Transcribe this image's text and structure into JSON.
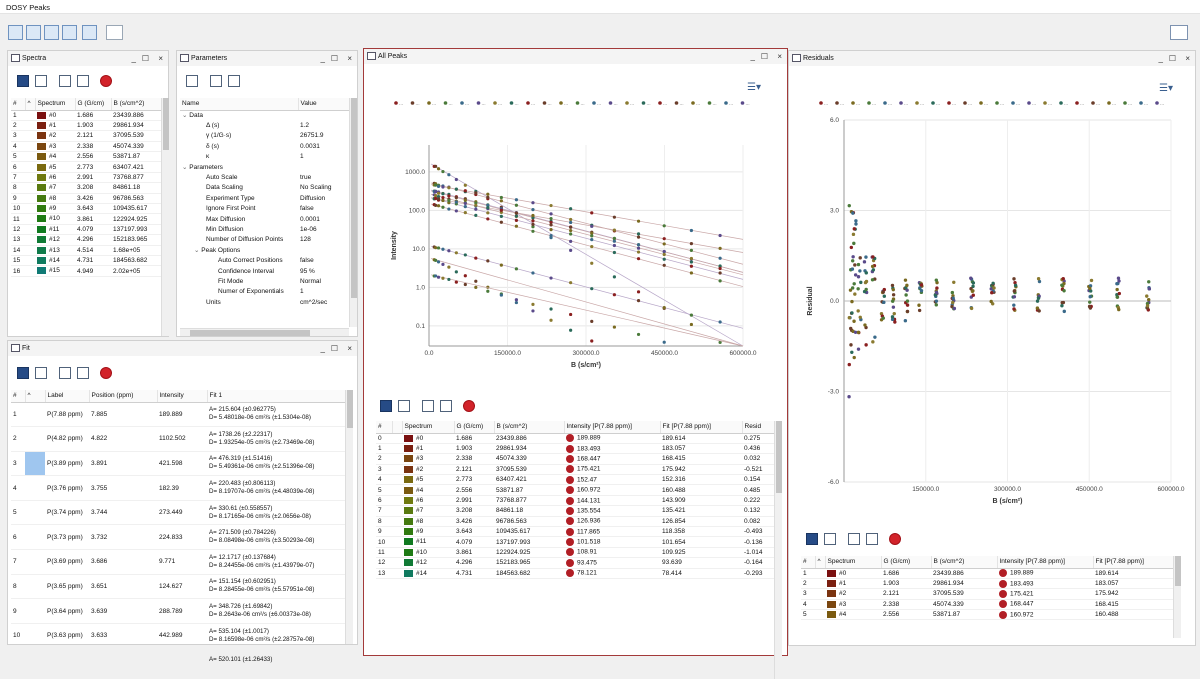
{
  "app": {
    "title": "DOSY Peaks"
  },
  "panels": {
    "spectra": {
      "title": "Spectra",
      "columns": [
        "#",
        "^",
        "Spectrum",
        "G (G/cm)",
        "B (s/cm^2)"
      ],
      "rows": [
        {
          "n": "1",
          "spectrum": "#0",
          "g": "1.686",
          "b": "23439.886",
          "color": "#7a1010"
        },
        {
          "n": "2",
          "spectrum": "#1",
          "g": "1.903",
          "b": "29861.934",
          "color": "#7a1f10"
        },
        {
          "n": "3",
          "spectrum": "#2",
          "g": "2.121",
          "b": "37095.539",
          "color": "#7a3310"
        },
        {
          "n": "4",
          "spectrum": "#3",
          "g": "2.338",
          "b": "45074.339",
          "color": "#7a4610"
        },
        {
          "n": "5",
          "spectrum": "#4",
          "g": "2.556",
          "b": "53871.87",
          "color": "#7a5a10"
        },
        {
          "n": "6",
          "spectrum": "#5",
          "g": "2.773",
          "b": "63407.421",
          "color": "#7a6a10"
        },
        {
          "n": "7",
          "spectrum": "#6",
          "g": "2.991",
          "b": "73768.877",
          "color": "#707a10"
        },
        {
          "n": "8",
          "spectrum": "#7",
          "g": "3.208",
          "b": "84861.18",
          "color": "#5a7a10"
        },
        {
          "n": "9",
          "spectrum": "#8",
          "g": "3.426",
          "b": "96786.563",
          "color": "#457a10"
        },
        {
          "n": "10",
          "spectrum": "#9",
          "g": "3.643",
          "b": "109435.617",
          "color": "#307a10"
        },
        {
          "n": "11",
          "spectrum": "#10",
          "g": "3.861",
          "b": "122924.925",
          "color": "#1e7a14"
        },
        {
          "n": "12",
          "spectrum": "#11",
          "g": "4.079",
          "b": "137197.993",
          "color": "#107a20"
        },
        {
          "n": "13",
          "spectrum": "#12",
          "g": "4.296",
          "b": "152183.965",
          "color": "#107a35"
        },
        {
          "n": "14",
          "spectrum": "#13",
          "g": "4.514",
          "b": "1.68e+05",
          "color": "#107a4a"
        },
        {
          "n": "15",
          "spectrum": "#14",
          "g": "4.731",
          "b": "184563.682",
          "color": "#107a5f"
        },
        {
          "n": "16",
          "spectrum": "#15",
          "g": "4.949",
          "b": "2.02e+05",
          "color": "#107a75"
        }
      ]
    },
    "parameters": {
      "title": "Parameters",
      "columns": [
        "Name",
        "Value"
      ],
      "rows": [
        {
          "name": "Data",
          "value": "",
          "lvl": 0,
          "exp": "v"
        },
        {
          "name": "Δ (s)",
          "value": "1.2",
          "lvl": 2,
          "exp": ""
        },
        {
          "name": "γ (1/G·s)",
          "value": "26751.9",
          "lvl": 2,
          "exp": ""
        },
        {
          "name": "δ (s)",
          "value": "0.0031",
          "lvl": 2,
          "exp": ""
        },
        {
          "name": "κ",
          "value": "1",
          "lvl": 2,
          "exp": ""
        },
        {
          "name": "Parameters",
          "value": "",
          "lvl": 0,
          "exp": "v"
        },
        {
          "name": "Auto Scale",
          "value": "true",
          "lvl": 2,
          "exp": ""
        },
        {
          "name": "Data Scaling",
          "value": "No Scaling",
          "lvl": 2,
          "exp": ""
        },
        {
          "name": "Experiment Type",
          "value": "Diffusion",
          "lvl": 2,
          "exp": ""
        },
        {
          "name": "Ignore First Point",
          "value": "false",
          "lvl": 2,
          "exp": ""
        },
        {
          "name": "Max Diffusion",
          "value": "0.0001",
          "lvl": 2,
          "exp": ""
        },
        {
          "name": "Min Diffusion",
          "value": "1e-06",
          "lvl": 2,
          "exp": ""
        },
        {
          "name": "Number of Diffusion Points",
          "value": "128",
          "lvl": 2,
          "exp": ""
        },
        {
          "name": "Peak Options",
          "value": "",
          "lvl": 1,
          "exp": "v"
        },
        {
          "name": "Auto Correct Positions",
          "value": "false",
          "lvl": 3,
          "exp": ""
        },
        {
          "name": "Confidence Interval",
          "value": "95 %",
          "lvl": 3,
          "exp": ""
        },
        {
          "name": "Fit Mode",
          "value": "Normal",
          "lvl": 3,
          "exp": ""
        },
        {
          "name": "Numer of Exponentials",
          "value": "1",
          "lvl": 3,
          "exp": ""
        },
        {
          "name": "Units",
          "value": "cm^2/sec",
          "lvl": 2,
          "exp": ""
        }
      ]
    },
    "fit": {
      "title": "Fit",
      "columns": [
        "#",
        "^",
        "Label",
        "Position (ppm)",
        "Intensity",
        "Fit 1"
      ],
      "rows": [
        {
          "n": "1",
          "label": "P(7.88 ppm)",
          "pos": "7.885",
          "int": "189.889",
          "a": "A= 215.604 (±0.962775)",
          "d": "D= 5.48018e-06 cm²/s (±1.5304e-08)"
        },
        {
          "n": "2",
          "label": "P(4.82 ppm)",
          "pos": "4.822",
          "int": "1102.502",
          "a": "A= 1738.26 (±2.22317)",
          "d": "D= 1.93254e-05 cm²/s (±2.73469e-08)"
        },
        {
          "n": "3",
          "label": "P(3.89 ppm)",
          "pos": "3.891",
          "int": "421.598",
          "a": "A= 476.319 (±1.51416)",
          "d": "D= 5.49361e-06 cm²/s (±2.51396e-08)"
        },
        {
          "n": "4",
          "label": "P(3.76 ppm)",
          "pos": "3.755",
          "int": "182.39",
          "a": "A= 220.483 (±0.806113)",
          "d": "D= 8.19707e-06 cm²/s (±4.48039e-08)"
        },
        {
          "n": "5",
          "label": "P(3.74 ppm)",
          "pos": "3.744",
          "int": "273.449",
          "a": "A= 330.61 (±0.558557)",
          "d": "D= 8.17165e-06 cm²/s (±2.0656e-08)"
        },
        {
          "n": "6",
          "label": "P(3.73 ppm)",
          "pos": "3.732",
          "int": "224.833",
          "a": "A= 271.509 (±0.784226)",
          "d": "D= 8.08498e-06 cm²/s (±3.50293e-08)"
        },
        {
          "n": "7",
          "label": "P(3.69 ppm)",
          "pos": "3.686",
          "int": "9.771",
          "a": "A= 12.1717 (±0.137684)",
          "d": "D= 8.24455e-06 cm²/s (±1.43979e-07)"
        },
        {
          "n": "8",
          "label": "P(3.65 ppm)",
          "pos": "3.651",
          "int": "124.627",
          "a": "A= 151.154 (±0.602951)",
          "d": "D= 8.28455e-06 cm²/s (±5.57951e-08)"
        },
        {
          "n": "9",
          "label": "P(3.64 ppm)",
          "pos": "3.639",
          "int": "288.789",
          "a": "A= 348.726 (±1.69842)",
          "d": "D= 8.2643e-06 cm²/s (±6.00373e-08)"
        },
        {
          "n": "10",
          "label": "P(3.63 ppm)",
          "pos": "3.633",
          "int": "442.989",
          "a": "A= 535.104 (±1.0017)",
          "d": "D= 8.16598e-06 cm²/s (±2.28757e-08)"
        },
        {
          "n": "",
          "label": "",
          "pos": "",
          "int": "",
          "a": "A= 520.101 (±1.26433)",
          "d": ""
        }
      ]
    },
    "allpeaks": {
      "title": "All Peaks",
      "columns": [
        "#",
        "",
        "Spectrum",
        "G (G/cm)",
        "B (s/cm^2)",
        "Intensity [P(7.88 ppm)]",
        "Fit [P(7.88 ppm)]",
        "Resid"
      ],
      "rows": [
        {
          "n": "0",
          "spectrum": "#0",
          "g": "1.686",
          "b": "23439.886",
          "i": "189.889",
          "f": "189.614",
          "r": "0.275",
          "color": "#7a1010"
        },
        {
          "n": "1",
          "spectrum": "#1",
          "g": "1.903",
          "b": "29861.934",
          "i": "183.493",
          "f": "183.057",
          "r": "0.436",
          "color": "#7a1f10"
        },
        {
          "n": "2",
          "spectrum": "#3",
          "g": "2.338",
          "b": "45074.339",
          "i": "168.447",
          "f": "168.415",
          "r": "0.032",
          "color": "#7a4610"
        },
        {
          "n": "3",
          "spectrum": "#2",
          "g": "2.121",
          "b": "37095.539",
          "i": "175.421",
          "f": "175.942",
          "r": "-0.521",
          "color": "#7a3310"
        },
        {
          "n": "4",
          "spectrum": "#5",
          "g": "2.773",
          "b": "63407.421",
          "i": "152.47",
          "f": "152.316",
          "r": "0.154",
          "color": "#7a6a10"
        },
        {
          "n": "5",
          "spectrum": "#4",
          "g": "2.556",
          "b": "53871.87",
          "i": "160.972",
          "f": "160.488",
          "r": "0.485",
          "color": "#7a5a10"
        },
        {
          "n": "6",
          "spectrum": "#6",
          "g": "2.991",
          "b": "73768.877",
          "i": "144.131",
          "f": "143.909",
          "r": "0.222",
          "color": "#707a10"
        },
        {
          "n": "7",
          "spectrum": "#7",
          "g": "3.208",
          "b": "84861.18",
          "i": "135.554",
          "f": "135.421",
          "r": "0.132",
          "color": "#5a7a10"
        },
        {
          "n": "8",
          "spectrum": "#8",
          "g": "3.426",
          "b": "96786.563",
          "i": "126.936",
          "f": "126.854",
          "r": "0.082",
          "color": "#457a10"
        },
        {
          "n": "9",
          "spectrum": "#9",
          "g": "3.643",
          "b": "109435.617",
          "i": "117.865",
          "f": "118.358",
          "r": "-0.493",
          "color": "#307a10"
        },
        {
          "n": "10",
          "spectrum": "#11",
          "g": "4.079",
          "b": "137197.993",
          "i": "101.518",
          "f": "101.654",
          "r": "-0.136",
          "color": "#107a20"
        },
        {
          "n": "11",
          "spectrum": "#10",
          "g": "3.861",
          "b": "122924.925",
          "i": "108.91",
          "f": "109.925",
          "r": "-1.014",
          "color": "#1e7a14"
        },
        {
          "n": "12",
          "spectrum": "#12",
          "g": "4.296",
          "b": "152183.965",
          "i": "93.475",
          "f": "93.639",
          "r": "-0.164",
          "color": "#107a35"
        },
        {
          "n": "13",
          "spectrum": "#14",
          "g": "4.731",
          "b": "184563.682",
          "i": "78.121",
          "f": "78.414",
          "r": "-0.293",
          "color": "#107a5f"
        }
      ]
    },
    "residuals": {
      "title": "Residuals",
      "columns": [
        "#",
        "^",
        "Spectrum",
        "G (G/cm)",
        "B (s/cm^2)",
        "Intensity [P(7.88 ppm)]",
        "Fit [P(7.88 ppm)]"
      ],
      "rows": [
        {
          "n": "1",
          "spectrum": "#0",
          "g": "1.686",
          "b": "23439.886",
          "i": "189.889",
          "f": "189.614",
          "color": "#7a1010"
        },
        {
          "n": "2",
          "spectrum": "#1",
          "g": "1.903",
          "b": "29861.934",
          "i": "183.493",
          "f": "183.057",
          "color": "#7a1f10"
        },
        {
          "n": "3",
          "spectrum": "#2",
          "g": "2.121",
          "b": "37095.539",
          "i": "175.421",
          "f": "175.942",
          "color": "#7a3310"
        },
        {
          "n": "4",
          "spectrum": "#3",
          "g": "2.338",
          "b": "45074.339",
          "i": "168.447",
          "f": "168.415",
          "color": "#7a4610"
        },
        {
          "n": "5",
          "spectrum": "#4",
          "g": "2.556",
          "b": "53871.87",
          "i": "160.972",
          "f": "160.488",
          "color": "#7a5a10"
        }
      ]
    }
  },
  "chart_data": [
    {
      "type": "scatter",
      "ylabel": "Intensity",
      "xlabel": "B (s/cm²)",
      "xlim": [
        0,
        600000
      ],
      "yscale": "log",
      "ylim": [
        0.03,
        5000
      ],
      "xticks": [
        "0.0",
        "150000.0",
        "300000.0",
        "450000.0",
        "600000.0"
      ],
      "yticks": [
        "0.1",
        "1.0",
        "10.0",
        "100.0",
        "1000.0"
      ],
      "series_colors": [
        "#8a1f1f",
        "#6a3d2a",
        "#7a6a20",
        "#4a7a3a",
        "#3a6a8a",
        "#5a4a8a",
        "#8a7a30",
        "#2a6a5a"
      ],
      "series": [
        {
          "A": 1738.26,
          "D": 1.93254e-05
        },
        {
          "A": 535.104,
          "D": 8.16598e-06
        },
        {
          "A": 476.319,
          "D": 5.49361e-06
        },
        {
          "A": 348.726,
          "D": 8.2643e-06
        },
        {
          "A": 330.61,
          "D": 8.17165e-06
        },
        {
          "A": 271.509,
          "D": 8.08498e-06
        },
        {
          "A": 220.483,
          "D": 8.19707e-06
        },
        {
          "A": 215.604,
          "D": 5.48018e-06
        },
        {
          "A": 151.154,
          "D": 8.28455e-06
        },
        {
          "A": 12.1717,
          "D": 8.24455e-06
        },
        {
          "A": 6,
          "D": 1.6e-05
        },
        {
          "A": 2.2,
          "D": 9e-06
        }
      ]
    },
    {
      "type": "scatter",
      "ylabel": "Residual",
      "xlabel": "B (s/cm²)",
      "xlim": [
        0,
        600000
      ],
      "ylim": [
        -6,
        6
      ],
      "xticks": [
        "150000.0",
        "300000.0",
        "450000.0",
        "600000.0"
      ],
      "yticks": [
        "6.0",
        "3.0",
        "0.0",
        "-3.0",
        "-6.0"
      ]
    }
  ]
}
